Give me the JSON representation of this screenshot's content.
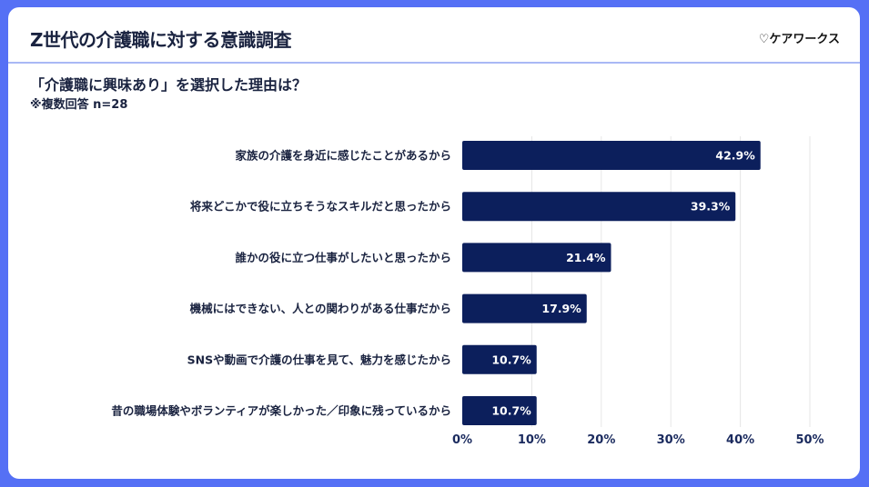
{
  "header": {
    "title": "Z世代の介護職に対する意識調査",
    "logo": "♡ケアワークス"
  },
  "subtitle": "「介護職に興味あり」を選択した理由は？",
  "note": "※複数回答 n=28",
  "colors": {
    "background": "#5570f5",
    "bar": "#0c1f5c"
  },
  "chart_data": {
    "type": "bar",
    "orientation": "horizontal",
    "categories": [
      "家族の介護を身近に感じたことがあるから",
      "将来どこかで役に立ちそうなスキルだと思ったから",
      "誰かの役に立つ仕事がしたいと思ったから",
      "機械にはできない、人との関わりがある仕事だから",
      "SNSや動画で介護の仕事を見て、魅力を感じたから",
      "昔の職場体験やボランティアが楽しかった／印象に残っているから"
    ],
    "values": [
      42.9,
      39.3,
      21.4,
      17.9,
      10.7,
      10.7
    ],
    "data_labels": [
      "42.9%",
      "39.3%",
      "21.4%",
      "17.9%",
      "10.7%",
      "10.7%"
    ],
    "xlim": [
      0,
      50
    ],
    "ticks": [
      "0%",
      "10%",
      "20%",
      "30%",
      "40%",
      "50%"
    ],
    "grid": true
  }
}
